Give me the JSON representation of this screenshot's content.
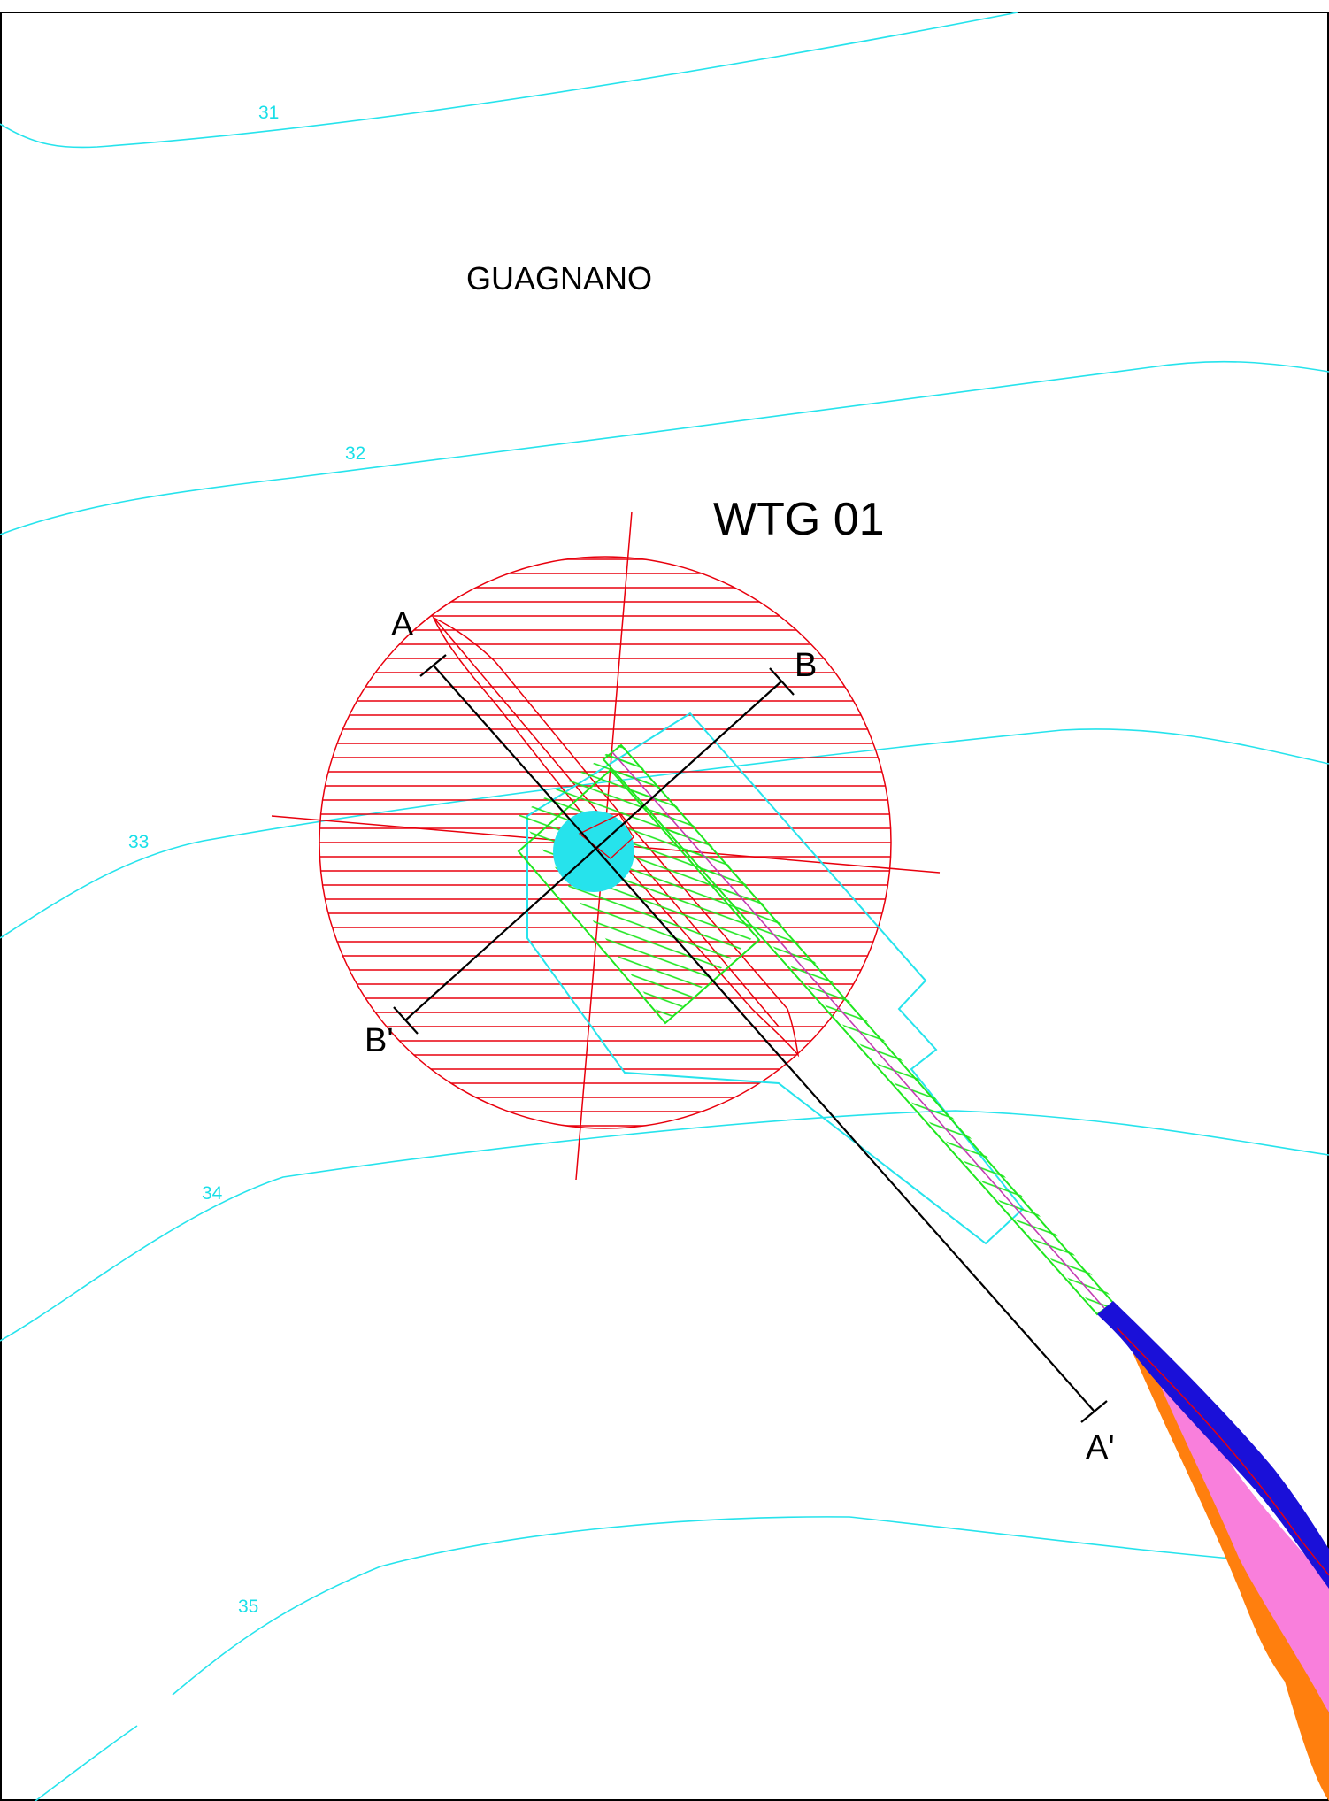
{
  "drawing": {
    "place_name": "GUAGNANO",
    "turbine_label": "WTG 01",
    "contour_labels": [
      "31",
      "32",
      "33",
      "34",
      "35"
    ],
    "section_a_start": "A",
    "section_a_end": "A'",
    "section_b_start": "B",
    "section_b_end": "B'"
  },
  "colors": {
    "contour": "#26e3ec",
    "exclusion_hatch": "#e8000d",
    "platform_hatch": "#1fe61f",
    "foundation": "#26e3ec",
    "road_existing": "#1a10d8",
    "road_fill": "#f97fdc",
    "road_edge": "#ff7f0e"
  }
}
